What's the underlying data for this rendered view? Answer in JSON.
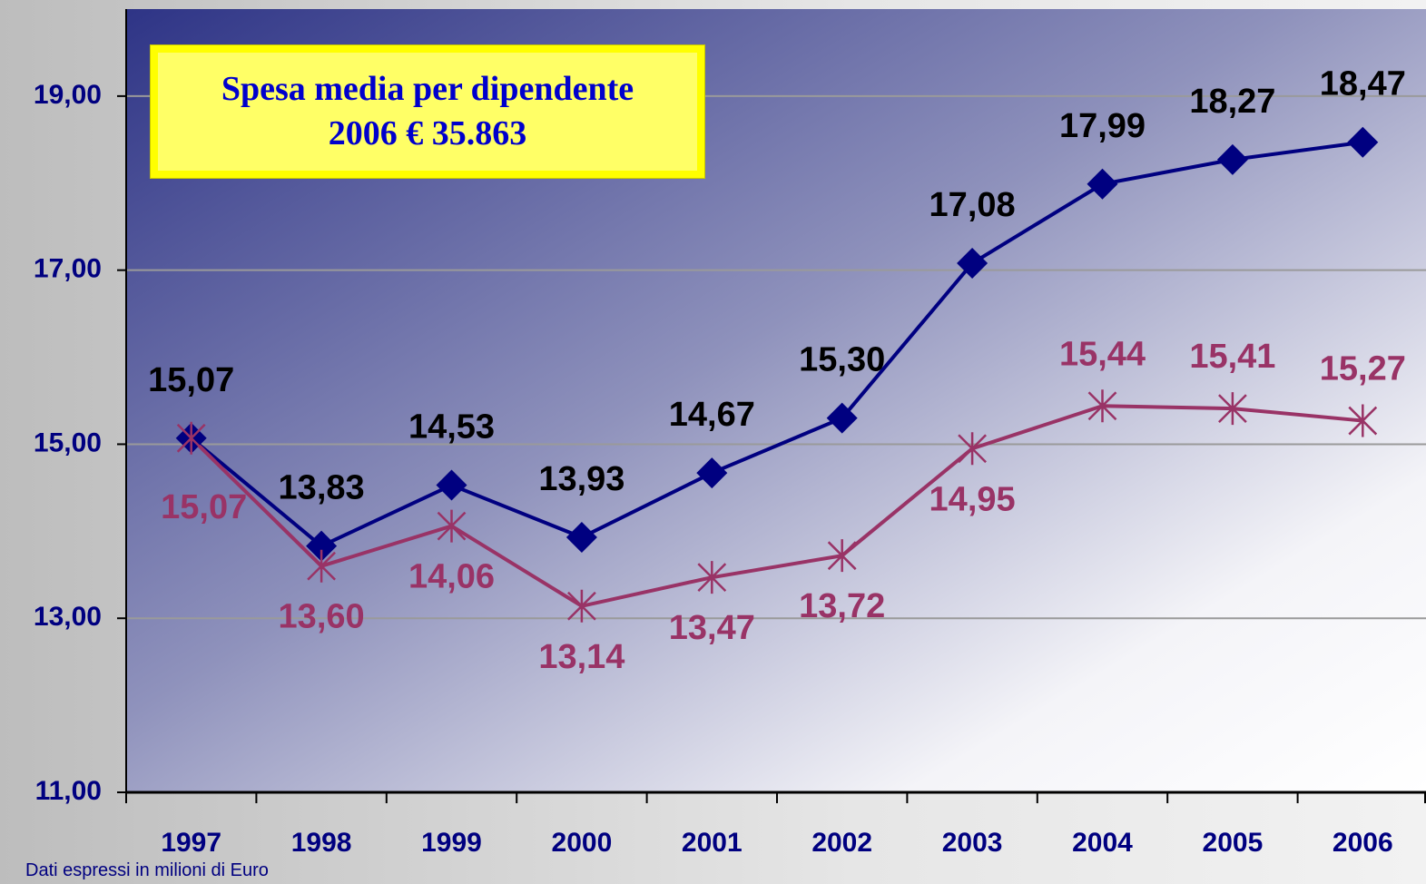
{
  "chart_data": {
    "type": "line",
    "annotation": "Spesa media per dipendente 2006 € 35.863",
    "footnote": "Dati espressi in milioni di Euro",
    "categories": [
      "1997",
      "1998",
      "1999",
      "2000",
      "2001",
      "2002",
      "2003",
      "2004",
      "2005",
      "2006"
    ],
    "series": [
      {
        "color": "#000080",
        "marker": "diamond",
        "values": [
          15.07,
          13.83,
          14.53,
          13.93,
          14.67,
          15.3,
          17.08,
          17.99,
          18.27,
          18.47
        ],
        "value_labels": [
          "15,07",
          "13,83",
          "14,53",
          "13,93",
          "14,67",
          "15,30",
          "17,08",
          "17,99",
          "18,27",
          "18,47"
        ]
      },
      {
        "color": "#993366",
        "marker": "asterisk",
        "values": [
          15.07,
          13.6,
          14.06,
          13.14,
          13.47,
          13.72,
          14.95,
          15.44,
          15.41,
          15.27
        ],
        "value_labels": [
          "15,07",
          "13,60",
          "14,06",
          "13,14",
          "13,47",
          "13,72",
          "14,95",
          "15,44",
          "15,41",
          "15,27"
        ]
      }
    ],
    "ylim": [
      11,
      20
    ],
    "yticks": [
      {
        "value": 11,
        "label": "11,00"
      },
      {
        "value": 13,
        "label": "13,00"
      },
      {
        "value": 15,
        "label": "15,00"
      },
      {
        "value": 17,
        "label": "17,00"
      },
      {
        "value": 19,
        "label": "19,00"
      }
    ],
    "grid": true
  }
}
